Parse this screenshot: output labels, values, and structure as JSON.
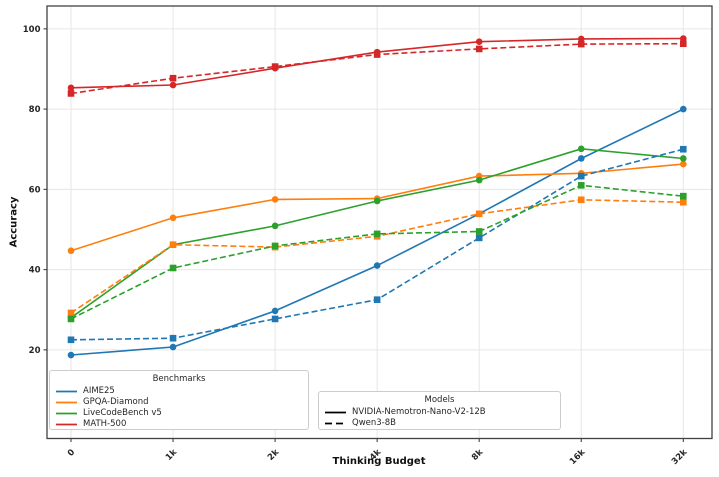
{
  "chart_data": {
    "type": "line",
    "title": "",
    "xlabel": "Thinking Budget",
    "ylabel": "Accuracy",
    "x_tick_labels": [
      "0",
      "1k",
      "2k",
      "4k",
      "8k",
      "16k",
      "32k"
    ],
    "y_ticks": [
      20,
      40,
      60,
      80,
      100
    ],
    "ylim": [
      -2.1,
      105.7
    ],
    "grid": true,
    "frame_color": "#424242",
    "grid_color": "#e6e6e6",
    "legend": {
      "benchmarks": {
        "title": "Benchmarks"
      },
      "models": {
        "title": "Models"
      },
      "position": "lower left"
    },
    "benchmarks": [
      {
        "name": "AIME25",
        "color": "#1f77b4"
      },
      {
        "name": "GPQA-Diamond",
        "color": "#ff7f0e"
      },
      {
        "name": "LiveCodeBench v5",
        "color": "#2ca02c"
      },
      {
        "name": "MATH-500",
        "color": "#d62728"
      }
    ],
    "models": [
      {
        "name": "NVIDIA-Nemotron-Nano-V2-12B",
        "line_style": "solid",
        "color": "#000000"
      },
      {
        "name": "Qwen3-8B",
        "line_style": "dashed",
        "color": "#000000"
      }
    ],
    "series": [
      {
        "benchmark": "AIME25",
        "model": "NVIDIA-Nemotron-Nano-V2-12B",
        "color": "#1f77b4",
        "line_style": "solid",
        "marker": "circle",
        "values": [
          18.7,
          20.7,
          29.7,
          41.0,
          53.9,
          67.7,
          80.0
        ]
      },
      {
        "benchmark": "GPQA-Diamond",
        "model": "NVIDIA-Nemotron-Nano-V2-12B",
        "color": "#ff7f0e",
        "line_style": "solid",
        "marker": "circle",
        "values": [
          44.7,
          52.9,
          57.5,
          57.7,
          63.3,
          64.0,
          66.3
        ]
      },
      {
        "benchmark": "LiveCodeBench v5",
        "model": "NVIDIA-Nemotron-Nano-V2-12B",
        "color": "#2ca02c",
        "line_style": "solid",
        "marker": "circle",
        "values": [
          28.0,
          46.2,
          50.9,
          57.1,
          62.3,
          70.1,
          67.7
        ]
      },
      {
        "benchmark": "MATH-500",
        "model": "NVIDIA-Nemotron-Nano-V2-12B",
        "color": "#d62728",
        "line_style": "solid",
        "marker": "circle",
        "values": [
          85.3,
          86.0,
          90.2,
          94.2,
          96.8,
          97.5,
          97.6
        ]
      },
      {
        "benchmark": "AIME25",
        "model": "Qwen3-8B",
        "color": "#1f77b4",
        "line_style": "dashed",
        "marker": "square",
        "values": [
          22.5,
          22.9,
          27.7,
          32.5,
          47.9,
          63.3,
          70.0
        ]
      },
      {
        "benchmark": "GPQA-Diamond",
        "model": "Qwen3-8B",
        "color": "#ff7f0e",
        "line_style": "dashed",
        "marker": "square",
        "values": [
          29.2,
          46.2,
          45.6,
          48.3,
          53.9,
          57.4,
          56.8
        ]
      },
      {
        "benchmark": "LiveCodeBench v5",
        "model": "Qwen3-8B",
        "color": "#2ca02c",
        "line_style": "dashed",
        "marker": "square",
        "values": [
          27.7,
          40.4,
          45.9,
          48.9,
          49.5,
          61.0,
          58.3
        ]
      },
      {
        "benchmark": "MATH-500",
        "model": "Qwen3-8B",
        "color": "#d62728",
        "line_style": "dashed",
        "marker": "square",
        "values": [
          83.9,
          87.7,
          90.6,
          93.6,
          95.0,
          96.2,
          96.3
        ]
      }
    ]
  }
}
